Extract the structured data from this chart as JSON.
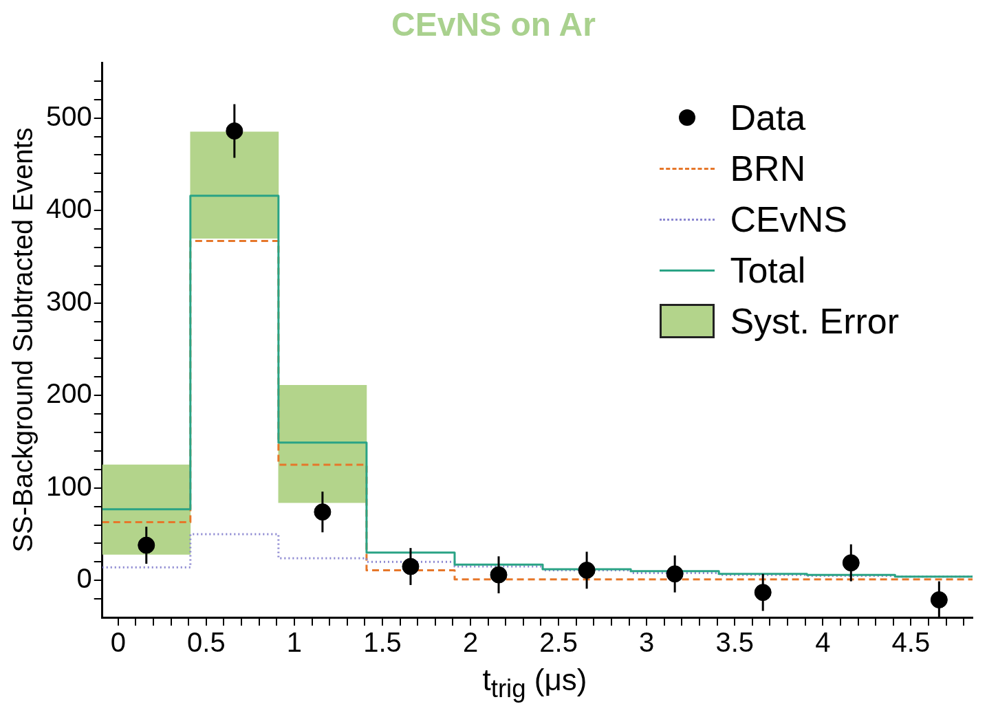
{
  "chart_data": {
    "type": "step",
    "title": "CEvNS on Ar",
    "xlabel": "t$_{trig}$ (μs)",
    "ylabel": "SS-Background Subtracted Events",
    "xlim": [
      -0.09,
      4.85
    ],
    "ylim": [
      -40,
      560
    ],
    "xticks": [
      0,
      {
        "value": 0.1,
        "label": null
      },
      {
        "value": 0.2,
        "label": null
      },
      {
        "value": 0.3,
        "label": null
      },
      {
        "value": 0.4,
        "label": null
      },
      0.5,
      {
        "value": 0.6,
        "label": null
      },
      {
        "value": 0.7,
        "label": null
      },
      {
        "value": 0.8,
        "label": null
      },
      {
        "value": 0.9,
        "label": null
      },
      1,
      {
        "value": 1.1,
        "label": null
      },
      {
        "value": 1.2,
        "label": null
      },
      {
        "value": 1.3,
        "label": null
      },
      {
        "value": 1.4,
        "label": null
      },
      1.5,
      {
        "value": 1.6,
        "label": null
      },
      {
        "value": 1.7,
        "label": null
      },
      {
        "value": 1.8,
        "label": null
      },
      {
        "value": 1.9,
        "label": null
      },
      2,
      {
        "value": 2.1,
        "label": null
      },
      {
        "value": 2.2,
        "label": null
      },
      {
        "value": 2.3,
        "label": null
      },
      {
        "value": 2.4,
        "label": null
      },
      2.5,
      {
        "value": 2.6,
        "label": null
      },
      {
        "value": 2.7,
        "label": null
      },
      {
        "value": 2.8,
        "label": null
      },
      {
        "value": 2.9,
        "label": null
      },
      3,
      {
        "value": 3.1,
        "label": null
      },
      {
        "value": 3.2,
        "label": null
      },
      {
        "value": 3.3,
        "label": null
      },
      {
        "value": 3.4,
        "label": null
      },
      3.5,
      {
        "value": 3.6,
        "label": null
      },
      {
        "value": 3.7,
        "label": null
      },
      {
        "value": 3.8,
        "label": null
      },
      {
        "value": 3.9,
        "label": null
      },
      4,
      {
        "value": 4.1,
        "label": null
      },
      {
        "value": 4.2,
        "label": null
      },
      {
        "value": 4.3,
        "label": null
      },
      {
        "value": 4.4,
        "label": null
      },
      4.5,
      {
        "value": 4.6,
        "label": null
      },
      {
        "value": 4.7,
        "label": null
      },
      {
        "value": 4.8,
        "label": null
      }
    ],
    "yticks": [
      {
        "value": -20,
        "label": null
      },
      0,
      {
        "value": 20,
        "label": null
      },
      {
        "value": 40,
        "label": null
      },
      {
        "value": 60,
        "label": null
      },
      {
        "value": 80,
        "label": null
      },
      100,
      {
        "value": 120,
        "label": null
      },
      {
        "value": 140,
        "label": null
      },
      {
        "value": 160,
        "label": null
      },
      {
        "value": 180,
        "label": null
      },
      200,
      {
        "value": 220,
        "label": null
      },
      {
        "value": 240,
        "label": null
      },
      {
        "value": 260,
        "label": null
      },
      {
        "value": 280,
        "label": null
      },
      300,
      {
        "value": 320,
        "label": null
      },
      {
        "value": 340,
        "label": null
      },
      {
        "value": 360,
        "label": null
      },
      {
        "value": 380,
        "label": null
      },
      400,
      {
        "value": 420,
        "label": null
      },
      {
        "value": 440,
        "label": null
      },
      {
        "value": 460,
        "label": null
      },
      {
        "value": 480,
        "label": null
      },
      500,
      {
        "value": 520,
        "label": null
      },
      {
        "value": 540,
        "label": null
      }
    ],
    "grid": false,
    "legend": "top right",
    "series": [
      {
        "name": "Syst. Error",
        "type": "bar",
        "color": "#b3d48b",
        "x": [
          0.16,
          0.66,
          1.16
        ],
        "base": [
          28,
          370,
          84
        ],
        "values": [
          97,
          115,
          127
        ]
      },
      {
        "name": "Total",
        "color": "#2aa385",
        "line_style": "solid",
        "x": [
          -0.09,
          0.41,
          0.91,
          1.41,
          1.91,
          2.41,
          2.91,
          3.41,
          3.91,
          4.41
        ],
        "values": [
          77,
          416,
          149,
          30,
          17,
          12,
          10,
          7,
          6,
          4
        ]
      },
      {
        "name": "CEvNS",
        "color": "#8a86d0",
        "line_style": "dotted",
        "x": [
          -0.09,
          0.41,
          0.91,
          1.41,
          1.91,
          2.41,
          2.91,
          3.41,
          3.91,
          4.41
        ],
        "values": [
          14,
          50,
          24,
          20,
          15,
          11,
          8,
          6,
          5,
          4
        ]
      },
      {
        "name": "BRN",
        "color": "#e6772a",
        "line_style": "dashed",
        "x": [
          -0.09,
          0.41,
          0.91,
          1.41,
          1.91,
          2.41,
          2.91,
          3.41,
          3.91,
          4.41
        ],
        "values": [
          63,
          367,
          125,
          11,
          1,
          1,
          1,
          1,
          1,
          1
        ]
      },
      {
        "name": "Data",
        "type": "scatter",
        "color": "#000000",
        "marker": "circle",
        "x": [
          0.16,
          0.66,
          1.16,
          1.66,
          2.16,
          2.66,
          3.16,
          3.66,
          4.16,
          4.66
        ],
        "values": [
          38,
          486,
          74,
          15,
          6,
          11,
          7,
          -13,
          19,
          -21
        ],
        "errors": [
          20,
          29,
          22,
          20,
          20,
          20,
          20,
          20,
          20,
          20
        ]
      }
    ]
  }
}
